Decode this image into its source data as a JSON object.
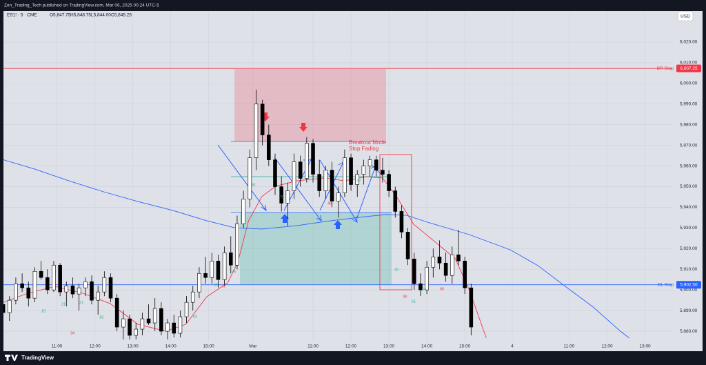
{
  "header": {
    "publisher": "Zen_Trading_Tech published on TradingView.com, Mar 06, 2025 00:24 UTC-5"
  },
  "footer": {
    "brand": "TradingView"
  },
  "chart_data": {
    "type": "candlestick",
    "symbol": "ES1! · 5 · CME",
    "ohlc_labels": [
      "O5,847.75",
      "H5,848.75",
      "L5,844.00",
      "C5,845.25"
    ],
    "currency": "USD",
    "annotation": [
      "Breakout Mode",
      "Stop Fading"
    ],
    "up_color": "#ffffff",
    "down_color": "#000000",
    "wick_color": "#000000",
    "xlim": [
      0,
      106.3
    ],
    "ylim": [
      5875,
      6038
    ],
    "grid": true,
    "xticks": [
      {
        "value": 9,
        "label": "11:00"
      },
      {
        "value": 15,
        "label": "12:00"
      },
      {
        "value": 21,
        "label": "13:00"
      },
      {
        "value": 27,
        "label": "14:00"
      },
      {
        "value": 33,
        "label": "15:00"
      },
      {
        "value": 40,
        "label": "Mar"
      },
      {
        "value": 49.5,
        "label": "11:00"
      },
      {
        "value": 55.5,
        "label": "12:00"
      },
      {
        "value": 61.5,
        "label": "13:00"
      },
      {
        "value": 67.5,
        "label": "14:00"
      },
      {
        "value": 73.5,
        "label": "15:00"
      },
      {
        "value": 81,
        "label": "4"
      },
      {
        "value": 90,
        "label": "11:00"
      },
      {
        "value": 96,
        "label": "12:00"
      },
      {
        "value": 102,
        "label": "13:00"
      }
    ],
    "yticks": [
      {
        "value": 5880,
        "label": "5,880.00"
      },
      {
        "value": 5890,
        "label": "5,890.00"
      },
      {
        "value": 5900,
        "label": "5,900.00"
      },
      {
        "value": 5910,
        "label": "5,910.00"
      },
      {
        "value": 5920,
        "label": "5,920.00"
      },
      {
        "value": 5930,
        "label": "5,930.00"
      },
      {
        "value": 5940,
        "label": "5,940.00"
      },
      {
        "value": 5950,
        "label": "5,950.00"
      },
      {
        "value": 5960,
        "label": "5,960.00"
      },
      {
        "value": 5970,
        "label": "5,970.00"
      },
      {
        "value": 5980,
        "label": "5,980.00"
      },
      {
        "value": 5990,
        "label": "5,990.00"
      },
      {
        "value": 6000,
        "label": "6,000.00"
      },
      {
        "value": 6010,
        "label": "6,010.00"
      },
      {
        "value": 6020,
        "label": "6,020.00"
      }
    ],
    "levels": [
      {
        "name": "BR Stop",
        "value": 6007.25,
        "label": "6,007.25",
        "color": "#f23645"
      },
      {
        "name": "BL Stop",
        "value": 5902.5,
        "label": "5,902.50",
        "color": "#2962ff"
      }
    ],
    "x": [
      0.5,
      1.5,
      2.5,
      3.5,
      4.5,
      5.5,
      6.5,
      7.5,
      8.5,
      9.5,
      10.5,
      11.5,
      12.5,
      13.5,
      14.5,
      15.5,
      16.5,
      17.5,
      18.5,
      19.5,
      20.5,
      21.5,
      22.5,
      23.5,
      24.5,
      25.5,
      26.5,
      27.5,
      28.5,
      29.5,
      30.5,
      31.5,
      32.5,
      33.5,
      34.5,
      35.5,
      36.5,
      37.5,
      38.5,
      39.5,
      40.5,
      41.5,
      42.5,
      43.5,
      44.5,
      45.5,
      46.5,
      47.5,
      48.5,
      49.5,
      50.5,
      51.5,
      52.5,
      53.5,
      54.5,
      55.5,
      56.5,
      57.5,
      58.5,
      59.5,
      60.5,
      61.5,
      62.5,
      63.5,
      64.5,
      65.5,
      66.5,
      67.5,
      68.5,
      69.5,
      70.5,
      71.5,
      72.5,
      73.5,
      74.5
    ],
    "open": [
      5893,
      5889,
      5895,
      5903,
      5901,
      5896,
      5909,
      5906,
      5900,
      5912,
      5899,
      5902,
      5898,
      5901,
      5904,
      5895,
      5899,
      5906,
      5896,
      5882,
      5886,
      5878,
      5881,
      5886,
      5884,
      5891,
      5880,
      5884,
      5879,
      5887,
      5894,
      5899,
      5908,
      5906,
      5914,
      5905,
      5918,
      5912,
      5932,
      5944,
      5964,
      5990,
      5975,
      5963,
      5950,
      5942,
      5948,
      5962,
      5954,
      5971,
      5956,
      5948,
      5958,
      5943,
      5947,
      5964,
      5951,
      5956,
      5960,
      5963,
      5958,
      5956,
      5948,
      5938,
      5928,
      5915,
      5903,
      5900,
      5911,
      5916,
      5913,
      5907,
      5917,
      5914,
      5901
    ],
    "high": [
      5898,
      5897,
      5906,
      5908,
      5904,
      5911,
      5914,
      5910,
      5914,
      5913,
      5904,
      5906,
      5903,
      5906,
      5907,
      5902,
      5909,
      5908,
      5898,
      5890,
      5888,
      5884,
      5889,
      5893,
      5896,
      5894,
      5886,
      5888,
      5890,
      5897,
      5902,
      5911,
      5916,
      5918,
      5917,
      5921,
      5926,
      5936,
      5948,
      5968,
      5997,
      5992,
      5980,
      5966,
      5955,
      5952,
      5966,
      5965,
      5974,
      5973,
      5963,
      5960,
      5962,
      5950,
      5968,
      5966,
      5958,
      5963,
      5965,
      5965,
      5964,
      5958,
      5950,
      5941,
      5930,
      5918,
      5908,
      5914,
      5920,
      5924,
      5918,
      5921,
      5929,
      5916,
      5903
    ],
    "low": [
      5884,
      5885,
      5893,
      5899,
      5892,
      5894,
      5905,
      5898,
      5899,
      5897,
      5892,
      5896,
      5890,
      5897,
      5893,
      5888,
      5897,
      5894,
      5880,
      5876,
      5876,
      5876,
      5878,
      5883,
      5880,
      5878,
      5876,
      5877,
      5877,
      5884,
      5890,
      5896,
      5903,
      5903,
      5901,
      5902,
      5908,
      5910,
      5930,
      5940,
      5958,
      5970,
      5960,
      5946,
      5938,
      5931,
      5944,
      5950,
      5952,
      5952,
      5945,
      5944,
      5940,
      5935,
      5945,
      5948,
      5945,
      5951,
      5955,
      5955,
      5952,
      5945,
      5935,
      5925,
      5912,
      5900,
      5897,
      5898,
      5906,
      5910,
      5904,
      5903,
      5912,
      5898,
      5878
    ],
    "close": [
      5889,
      5895,
      5903,
      5901,
      5896,
      5909,
      5906,
      5900,
      5912,
      5899,
      5902,
      5898,
      5901,
      5904,
      5895,
      5899,
      5906,
      5896,
      5882,
      5886,
      5878,
      5881,
      5886,
      5884,
      5891,
      5880,
      5884,
      5879,
      5887,
      5894,
      5899,
      5908,
      5906,
      5914,
      5905,
      5918,
      5912,
      5932,
      5944,
      5964,
      5990,
      5975,
      5963,
      5950,
      5942,
      5948,
      5962,
      5954,
      5971,
      5956,
      5948,
      5958,
      5943,
      5947,
      5964,
      5951,
      5956,
      5960,
      5963,
      5958,
      5956,
      5948,
      5938,
      5928,
      5915,
      5903,
      5900,
      5911,
      5916,
      5913,
      5907,
      5917,
      5914,
      5901,
      5882
    ],
    "lines": [
      {
        "color": "#f23645",
        "x": [
          0,
          4.4,
          8.7,
          13.1,
          17.4,
          21.8,
          26.2,
          29.4,
          32.7,
          36,
          37.6,
          39.3,
          41.4,
          43.6,
          46.9,
          51.3,
          54.5,
          57.8,
          60.5,
          62.7,
          65.4,
          68.7,
          72,
          74.2,
          76.9
        ],
        "values": [
          5893.4,
          5898.4,
          5901.7,
          5898.4,
          5893.4,
          5883.4,
          5880,
          5883.4,
          5896.7,
          5903.4,
          5913.4,
          5933.5,
          5945.2,
          5950.2,
          5952.8,
          5954.2,
          5952.8,
          5954.8,
          5954.2,
          5945.2,
          5931.8,
          5923.5,
          5915.1,
          5900.1,
          5876.7
        ]
      },
      {
        "color": "#2962ff",
        "x": [
          0,
          5.5,
          10.9,
          16.4,
          21.8,
          27.3,
          32.7,
          37.1,
          41.4,
          46.9,
          52.3,
          57.8,
          61.1,
          64.3,
          67.6,
          74.2,
          80.7,
          85.1,
          89.4,
          93.8,
          98.1,
          99.5
        ],
        "values": [
          5963.5,
          5958.5,
          5952.8,
          5947.5,
          5942.8,
          5938.5,
          5933.5,
          5930.1,
          5929.5,
          5931.1,
          5933.5,
          5935.5,
          5936.5,
          5936.1,
          5932.8,
          5926.8,
          5919.4,
          5911.7,
          5901.7,
          5891.7,
          5880,
          5876.7
        ]
      }
    ],
    "counts": [
      {
        "text": "15",
        "color": "#22ab94"
      },
      {
        "text": "21",
        "color": "#22ab94"
      },
      {
        "text": "27",
        "color": "#22ab94"
      },
      {
        "text": "33",
        "color": "#22ab94"
      },
      {
        "text": "34",
        "color": "#f23645"
      },
      {
        "text": "63",
        "color": "#22ab94"
      },
      {
        "text": "69",
        "color": "#22ab94"
      },
      {
        "text": "72",
        "color": "#f23645"
      },
      {
        "text": "75",
        "color": "#22ab94"
      },
      {
        "text": "81",
        "color": "#22ab94"
      },
      {
        "text": "75",
        "color": "#22ab94"
      },
      {
        "text": "48",
        "color": "#f23645"
      },
      {
        "text": "42",
        "color": "#22ab94"
      },
      {
        "text": "40",
        "color": "#22ab94"
      },
      {
        "text": "48",
        "color": "#f23645"
      },
      {
        "text": "51",
        "color": "#22ab94"
      },
      {
        "text": "54",
        "color": "#22ab94"
      },
      {
        "text": "60",
        "color": "#f23645"
      }
    ]
  }
}
